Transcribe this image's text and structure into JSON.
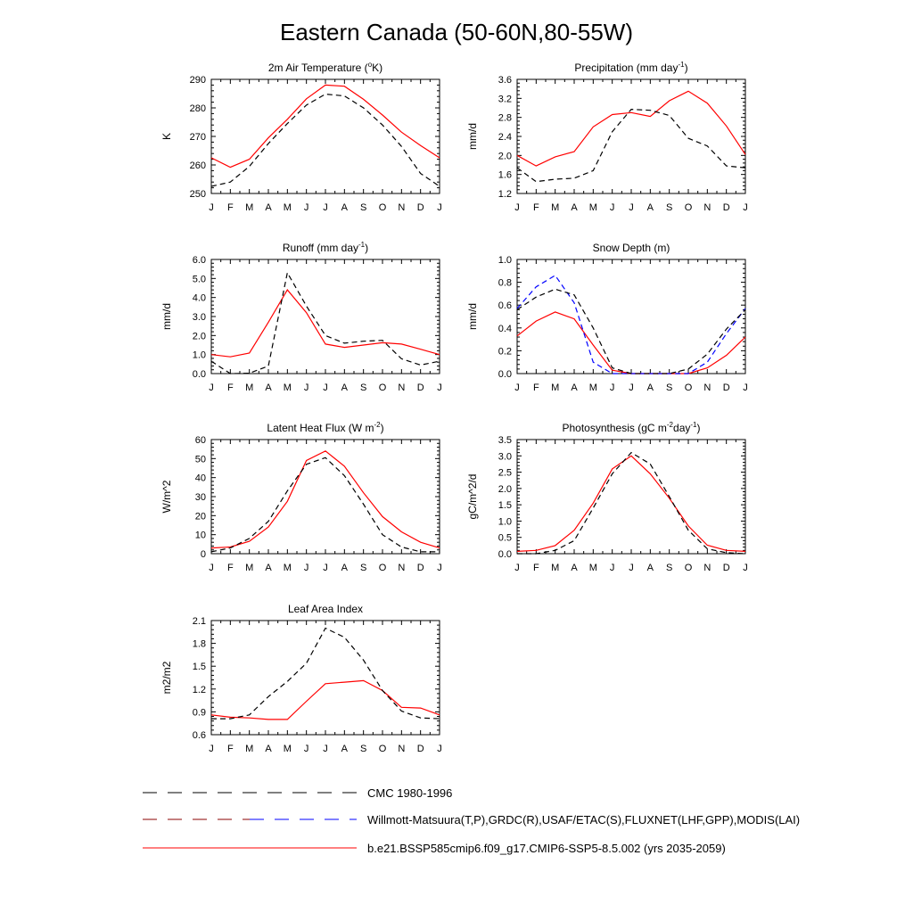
{
  "figure": {
    "title": "Eastern Canada (50-60N,80-55W)"
  },
  "legend": {
    "items": [
      {
        "label": "CMC 1980-1996",
        "style": "dashed",
        "colors": [
          "#000000"
        ]
      },
      {
        "label": "Willmott-Matsuura(T,P),GRDC(R),USAF/ETAC(S),FLUXNET(LHF,GPP),MODIS(LAI)",
        "style": "dashed",
        "colors": [
          "#8b0000",
          "#0000ff"
        ]
      },
      {
        "label": "b.e21.BSSP585cmip6.f09_g17.CMIP6-SSP5-8.5.002 (yrs 2035-2059)",
        "style": "solid",
        "colors": [
          "#ff0000"
        ]
      }
    ]
  },
  "chart_data": [
    {
      "type": "line",
      "title": "2m Air Temperature (",
      "title_sup": "o",
      "title_after": "K)",
      "ylabel": "K",
      "ylim": [
        250,
        290
      ],
      "yticks": [
        "250",
        "260",
        "270",
        "280",
        "290"
      ],
      "x": [
        "J",
        "F",
        "M",
        "A",
        "M",
        "J",
        "J",
        "A",
        "S",
        "O",
        "N",
        "D",
        "J"
      ],
      "series": [
        {
          "color": "#ff0000",
          "dash": "solid",
          "values": [
            262.5,
            259.2,
            262.0,
            269.5,
            276.0,
            283.2,
            288.0,
            287.6,
            283.0,
            277.5,
            271.5,
            266.8,
            262.5
          ]
        },
        {
          "color": "#000000",
          "dash": "dashed",
          "values": [
            252.5,
            254.0,
            259.5,
            267.5,
            274.5,
            281.0,
            284.8,
            284.2,
            280.0,
            274.0,
            266.5,
            257.0,
            252.5
          ]
        }
      ]
    },
    {
      "type": "line",
      "title": "Precipitation (mm day",
      "title_sup": "-1",
      "title_after": ")",
      "ylabel": "mm/d",
      "ylim": [
        1.2,
        3.6
      ],
      "yticks": [
        "1.2",
        "1.6",
        "2.0",
        "2.4",
        "2.8",
        "3.2",
        "3.6"
      ],
      "x": [
        "J",
        "F",
        "M",
        "A",
        "M",
        "J",
        "J",
        "A",
        "S",
        "O",
        "N",
        "D",
        "J"
      ],
      "series": [
        {
          "color": "#ff0000",
          "dash": "solid",
          "values": [
            2.0,
            1.78,
            1.97,
            2.08,
            2.6,
            2.86,
            2.9,
            2.82,
            3.15,
            3.35,
            3.1,
            2.62,
            2.02
          ]
        },
        {
          "color": "#000000",
          "dash": "dashed",
          "values": [
            1.74,
            1.45,
            1.5,
            1.52,
            1.68,
            2.5,
            2.97,
            2.95,
            2.84,
            2.36,
            2.2,
            1.78,
            1.74
          ]
        }
      ]
    },
    {
      "type": "line",
      "title": "Runoff (mm day",
      "title_sup": "-1",
      "title_after": ")",
      "ylabel": "mm/d",
      "ylim": [
        0.0,
        6.0
      ],
      "yticks": [
        "0.0",
        "1.0",
        "2.0",
        "3.0",
        "4.0",
        "5.0",
        "6.0"
      ],
      "x": [
        "J",
        "F",
        "M",
        "A",
        "M",
        "J",
        "J",
        "A",
        "S",
        "O",
        "N",
        "D",
        "J"
      ],
      "series": [
        {
          "color": "#ff0000",
          "dash": "solid",
          "values": [
            1.0,
            0.88,
            1.08,
            2.7,
            4.4,
            3.2,
            1.55,
            1.38,
            1.5,
            1.62,
            1.55,
            1.28,
            1.0
          ]
        },
        {
          "color": "#000000",
          "dash": "dashed",
          "values": [
            0.65,
            0.0,
            0.02,
            0.4,
            5.3,
            3.55,
            2.0,
            1.6,
            1.7,
            1.75,
            0.78,
            0.45,
            0.65
          ]
        }
      ]
    },
    {
      "type": "line",
      "title": "Snow Depth (m)",
      "title_sup": "",
      "title_after": "",
      "ylabel": "mm/d",
      "ylim": [
        0.0,
        1.0
      ],
      "yticks": [
        "0.0",
        "0.2",
        "0.4",
        "0.6",
        "0.8",
        "1.0"
      ],
      "x": [
        "J",
        "F",
        "M",
        "A",
        "M",
        "J",
        "J",
        "A",
        "S",
        "O",
        "N",
        "D",
        "J"
      ],
      "series": [
        {
          "color": "#ff0000",
          "dash": "solid",
          "values": [
            0.33,
            0.46,
            0.54,
            0.48,
            0.25,
            0.03,
            0.0,
            0.0,
            0.0,
            0.0,
            0.05,
            0.16,
            0.32
          ]
        },
        {
          "color": "#0000ff",
          "dash": "dashed",
          "values": [
            0.57,
            0.76,
            0.86,
            0.62,
            0.1,
            0.0,
            0.0,
            0.0,
            0.0,
            0.0,
            0.1,
            0.35,
            0.57
          ]
        },
        {
          "color": "#000000",
          "dash": "dashed",
          "values": [
            0.56,
            0.67,
            0.74,
            0.69,
            0.4,
            0.05,
            0.0,
            0.0,
            0.0,
            0.04,
            0.17,
            0.39,
            0.56
          ]
        }
      ]
    },
    {
      "type": "line",
      "title": "Latent Heat Flux (W m",
      "title_sup": "-2",
      "title_after": ")",
      "ylabel": "W/m^2",
      "ylim": [
        0,
        60
      ],
      "yticks": [
        "0",
        "10",
        "20",
        "30",
        "40",
        "50",
        "60"
      ],
      "x": [
        "J",
        "F",
        "M",
        "A",
        "M",
        "J",
        "J",
        "A",
        "S",
        "O",
        "N",
        "D",
        "J"
      ],
      "series": [
        {
          "color": "#ff0000",
          "dash": "solid",
          "values": [
            3,
            3.5,
            6.5,
            14,
            27.5,
            49,
            54,
            46,
            32,
            19.5,
            11.5,
            6,
            3
          ]
        },
        {
          "color": "#000000",
          "dash": "dashed",
          "values": [
            1,
            3,
            8,
            17,
            33,
            47,
            50.5,
            41,
            26,
            10,
            3.5,
            1,
            1
          ]
        }
      ]
    },
    {
      "type": "line",
      "title": "Photosynthesis (gC m",
      "title_sup": "-2",
      "title_after": "day",
      "title_sup2": "-1",
      "title_end": ")",
      "ylabel": "gC/m^2/d",
      "ylim": [
        0.0,
        3.5
      ],
      "yticks": [
        "0.0",
        "0.5",
        "1.0",
        "1.5",
        "2.0",
        "2.5",
        "3.0",
        "3.5"
      ],
      "x": [
        "J",
        "F",
        "M",
        "A",
        "M",
        "J",
        "J",
        "A",
        "S",
        "O",
        "N",
        "D",
        "J"
      ],
      "series": [
        {
          "color": "#ff0000",
          "dash": "solid",
          "values": [
            0.07,
            0.1,
            0.25,
            0.72,
            1.55,
            2.6,
            3.0,
            2.45,
            1.7,
            0.85,
            0.26,
            0.1,
            0.07
          ]
        },
        {
          "color": "#000000",
          "dash": "dashed",
          "values": [
            0.0,
            0.0,
            0.1,
            0.4,
            1.4,
            2.45,
            3.1,
            2.75,
            1.75,
            0.72,
            0.15,
            0.03,
            0.0
          ]
        }
      ]
    },
    {
      "type": "line",
      "title": "Leaf Area Index",
      "title_sup": "",
      "title_after": "",
      "ylabel": "m2/m2",
      "ylim": [
        0.6,
        2.1
      ],
      "yticks": [
        "0.6",
        "0.9",
        "1.2",
        "1.5",
        "1.8",
        "2.1"
      ],
      "x": [
        "J",
        "F",
        "M",
        "A",
        "M",
        "J",
        "J",
        "A",
        "S",
        "O",
        "N",
        "D",
        "J"
      ],
      "series": [
        {
          "color": "#ff0000",
          "dash": "solid",
          "values": [
            0.86,
            0.83,
            0.82,
            0.8,
            0.8,
            1.04,
            1.27,
            1.29,
            1.31,
            1.18,
            0.96,
            0.95,
            0.86
          ]
        },
        {
          "color": "#000000",
          "dash": "dashed",
          "values": [
            0.81,
            0.81,
            0.86,
            1.1,
            1.3,
            1.54,
            2.0,
            1.88,
            1.58,
            1.18,
            0.91,
            0.82,
            0.81
          ]
        }
      ]
    }
  ]
}
